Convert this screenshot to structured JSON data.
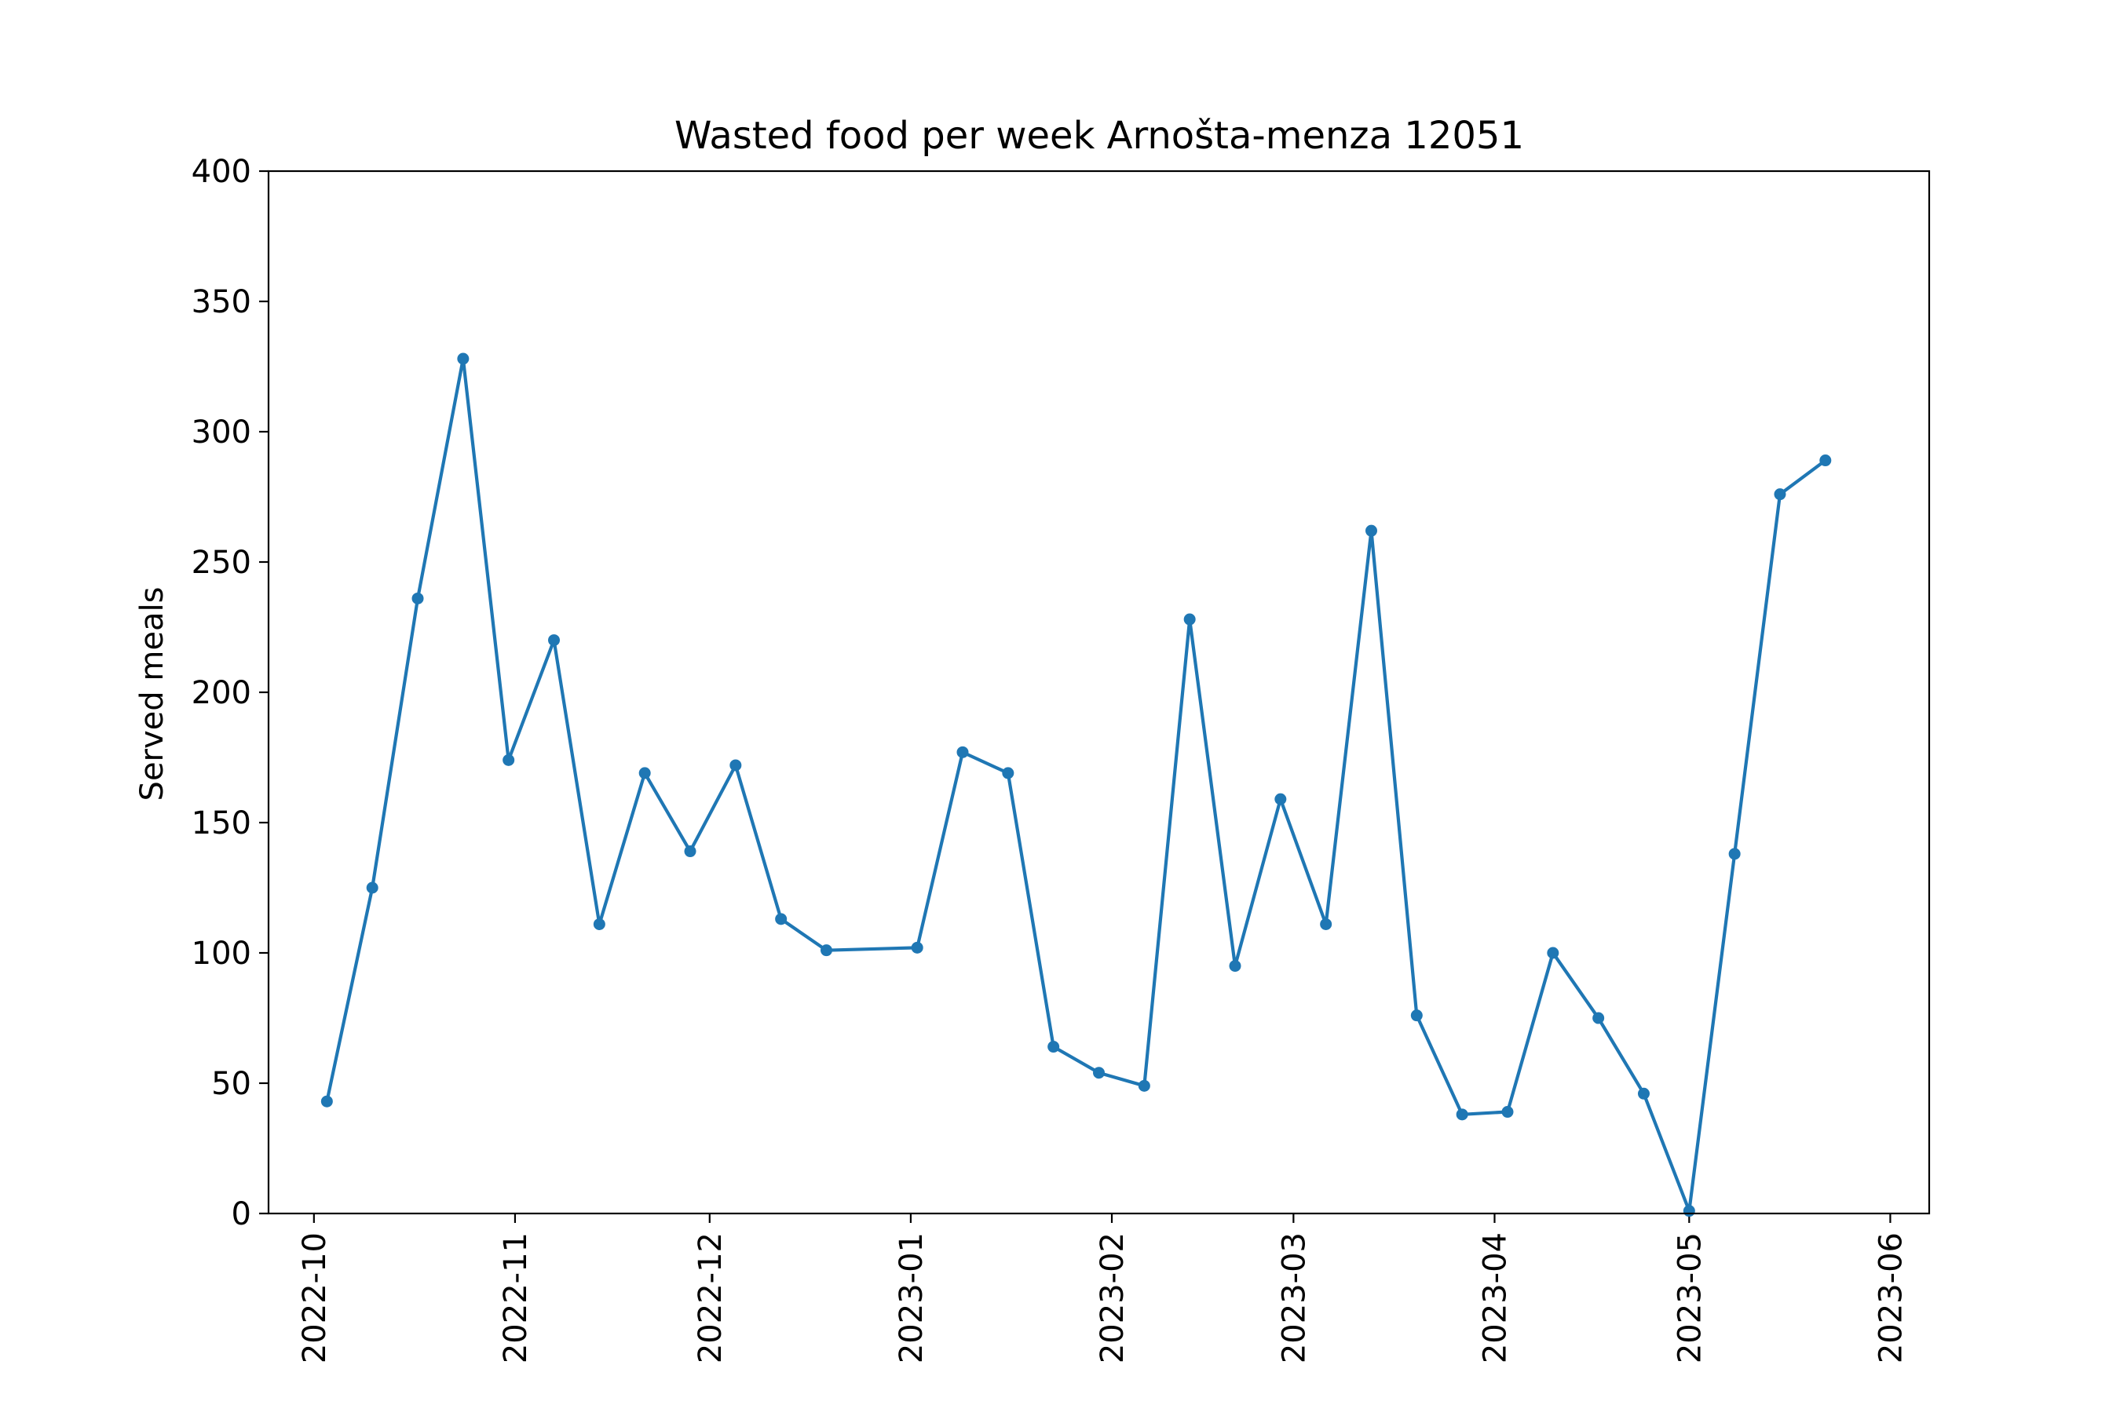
{
  "chart_data": {
    "type": "line",
    "title": "Wasted food per week Arnošta-menza 12051",
    "xlabel": "",
    "ylabel": "Served meals",
    "ylim": [
      0,
      400
    ],
    "xlim": [
      "2022-09-24",
      "2023-06-07"
    ],
    "yticks": [
      0,
      50,
      100,
      150,
      200,
      250,
      300,
      350,
      400
    ],
    "xticks": [
      "2022-10-01",
      "2022-11-01",
      "2022-12-01",
      "2023-01-01",
      "2023-02-01",
      "2023-03-01",
      "2023-04-01",
      "2023-05-01",
      "2023-06-01"
    ],
    "xtick_labels": [
      "2022-10",
      "2022-11",
      "2022-12",
      "2023-01",
      "2023-02",
      "2023-03",
      "2023-04",
      "2023-05",
      "2023-06"
    ],
    "grid": false,
    "color": "#1f77b4",
    "series": [
      {
        "marker": "dot",
        "points": [
          {
            "x": "2022-10-03",
            "y": 43
          },
          {
            "x": "2022-10-10",
            "y": 125
          },
          {
            "x": "2022-10-17",
            "y": 236
          },
          {
            "x": "2022-10-24",
            "y": 328
          },
          {
            "x": "2022-10-31",
            "y": 174
          },
          {
            "x": "2022-11-07",
            "y": 220
          },
          {
            "x": "2022-11-14",
            "y": 111
          },
          {
            "x": "2022-11-21",
            "y": 169
          },
          {
            "x": "2022-11-28",
            "y": 139
          },
          {
            "x": "2022-12-05",
            "y": 172
          },
          {
            "x": "2022-12-12",
            "y": 113
          },
          {
            "x": "2022-12-19",
            "y": 101
          },
          {
            "x": "2023-01-02",
            "y": 102
          },
          {
            "x": "2023-01-09",
            "y": 177
          },
          {
            "x": "2023-01-16",
            "y": 169
          },
          {
            "x": "2023-01-23",
            "y": 64
          },
          {
            "x": "2023-01-30",
            "y": 54
          },
          {
            "x": "2023-02-06",
            "y": 49
          },
          {
            "x": "2023-02-13",
            "y": 228
          },
          {
            "x": "2023-02-20",
            "y": 95
          },
          {
            "x": "2023-02-27",
            "y": 159
          },
          {
            "x": "2023-03-06",
            "y": 111
          },
          {
            "x": "2023-03-13",
            "y": 262
          },
          {
            "x": "2023-03-20",
            "y": 76
          },
          {
            "x": "2023-03-27",
            "y": 38
          },
          {
            "x": "2023-04-03",
            "y": 39
          },
          {
            "x": "2023-04-10",
            "y": 100
          },
          {
            "x": "2023-04-17",
            "y": 75
          },
          {
            "x": "2023-04-24",
            "y": 46
          },
          {
            "x": "2023-05-01",
            "y": 1
          },
          {
            "x": "2023-05-08",
            "y": 138
          },
          {
            "x": "2023-05-15",
            "y": 276
          },
          {
            "x": "2023-05-22",
            "y": 289
          }
        ]
      }
    ]
  }
}
